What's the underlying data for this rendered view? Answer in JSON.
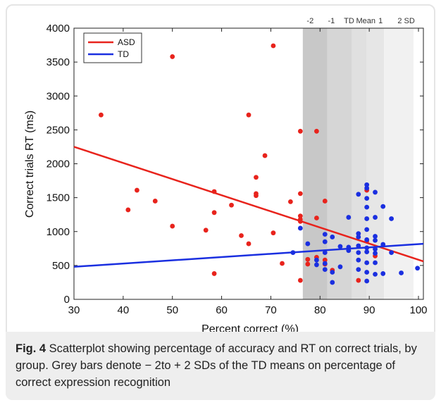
{
  "chart_data": {
    "type": "scatter",
    "xlabel": "Percent correct (%)",
    "ylabel": "Correct trials RT (ms)",
    "xlim": [
      30,
      101
    ],
    "ylim": [
      0,
      4000
    ],
    "xticks": [
      "30",
      "40",
      "50",
      "60",
      "70",
      "80",
      "90",
      "100"
    ],
    "yticks": [
      "0",
      "500",
      "1000",
      "1500",
      "2000",
      "2500",
      "3000",
      "3500",
      "4000"
    ],
    "legend": {
      "placement": "top-left",
      "entries": [
        "ASD",
        "TD"
      ]
    },
    "bands": [
      {
        "from": 76.5,
        "to": 81.5,
        "color": "#c8c8c8"
      },
      {
        "from": 81.5,
        "to": 86.5,
        "color": "#d6d6d6"
      },
      {
        "from": 86.5,
        "to": 89.5,
        "color": "#e0e0e0"
      },
      {
        "from": 89.5,
        "to": 93.0,
        "color": "#e6e6e6"
      },
      {
        "from": 93.0,
        "to": 99.0,
        "color": "#f1f1f1"
      }
    ],
    "band_labels": [
      {
        "x": 78.0,
        "text": "-2"
      },
      {
        "x": 82.3,
        "text": "-1"
      },
      {
        "x": 85.9,
        "text": "TD"
      },
      {
        "x": 89.3,
        "text": "Mean"
      },
      {
        "x": 92.3,
        "text": "1"
      },
      {
        "x": 97.5,
        "text": "2 SD"
      }
    ],
    "series": [
      {
        "name": "ASD",
        "color": "#e8231c",
        "fit": {
          "x": [
            30,
            101
          ],
          "y": [
            2250,
            560
          ]
        },
        "points": [
          [
            35.5,
            2720
          ],
          [
            41,
            1320
          ],
          [
            42.8,
            1610
          ],
          [
            46.5,
            1450
          ],
          [
            50,
            3580
          ],
          [
            50,
            1080
          ],
          [
            56.8,
            1020
          ],
          [
            58.5,
            1590
          ],
          [
            58.5,
            1280
          ],
          [
            58.5,
            380
          ],
          [
            62,
            1390
          ],
          [
            64,
            940
          ],
          [
            65.5,
            2720
          ],
          [
            65.5,
            820
          ],
          [
            67,
            1800
          ],
          [
            67,
            1560
          ],
          [
            67,
            1530
          ],
          [
            68.8,
            2120
          ],
          [
            70.5,
            3740
          ],
          [
            70.5,
            980
          ],
          [
            72.3,
            530
          ],
          [
            74,
            1440
          ],
          [
            76,
            2480
          ],
          [
            76,
            1560
          ],
          [
            76,
            1230
          ],
          [
            76,
            1180
          ],
          [
            76,
            1150
          ],
          [
            76,
            280
          ],
          [
            77.5,
            590
          ],
          [
            77.5,
            520
          ],
          [
            79.3,
            2480
          ],
          [
            79.3,
            1200
          ],
          [
            79.3,
            620
          ],
          [
            81,
            1450
          ],
          [
            81,
            580
          ],
          [
            81,
            520
          ],
          [
            82.5,
            430
          ],
          [
            87.8,
            280
          ],
          [
            89.5,
            1610
          ],
          [
            89.5,
            860
          ],
          [
            91.2,
            640
          ]
        ]
      },
      {
        "name": "TD",
        "color": "#1a2fe0",
        "fit": {
          "x": [
            30,
            101
          ],
          "y": [
            480,
            820
          ]
        },
        "points": [
          [
            74.5,
            690
          ],
          [
            76,
            1050
          ],
          [
            77.5,
            820
          ],
          [
            79.3,
            580
          ],
          [
            79.3,
            510
          ],
          [
            81,
            960
          ],
          [
            81,
            850
          ],
          [
            81,
            690
          ],
          [
            81,
            530
          ],
          [
            81,
            440
          ],
          [
            82.5,
            920
          ],
          [
            82.5,
            400
          ],
          [
            82.5,
            250
          ],
          [
            84.1,
            780
          ],
          [
            84.1,
            480
          ],
          [
            85.8,
            1210
          ],
          [
            85.8,
            770
          ],
          [
            85.8,
            720
          ],
          [
            87.8,
            1550
          ],
          [
            87.8,
            970
          ],
          [
            87.8,
            920
          ],
          [
            87.8,
            790
          ],
          [
            87.8,
            690
          ],
          [
            87.8,
            580
          ],
          [
            87.8,
            440
          ],
          [
            89.5,
            1690
          ],
          [
            89.5,
            1640
          ],
          [
            89.5,
            1490
          ],
          [
            89.5,
            1360
          ],
          [
            89.5,
            1190
          ],
          [
            89.5,
            1030
          ],
          [
            89.5,
            880
          ],
          [
            89.5,
            760
          ],
          [
            89.5,
            700
          ],
          [
            89.5,
            540
          ],
          [
            89.5,
            400
          ],
          [
            89.5,
            270
          ],
          [
            91.2,
            1580
          ],
          [
            91.2,
            1210
          ],
          [
            91.2,
            930
          ],
          [
            91.2,
            870
          ],
          [
            91.2,
            740
          ],
          [
            91.2,
            680
          ],
          [
            91.2,
            540
          ],
          [
            91.2,
            370
          ],
          [
            92.8,
            1370
          ],
          [
            92.8,
            810
          ],
          [
            92.8,
            380
          ],
          [
            94.5,
            1190
          ],
          [
            94.5,
            690
          ],
          [
            96.5,
            390
          ],
          [
            99.8,
            460
          ]
        ]
      }
    ]
  },
  "caption": {
    "label": "Fig. 4",
    "text": " Scatterplot showing percentage of accuracy and RT on correct trials, by group. Grey bars denote − 2to + 2 SDs of the TD means on percentage of correct expression recognition"
  }
}
